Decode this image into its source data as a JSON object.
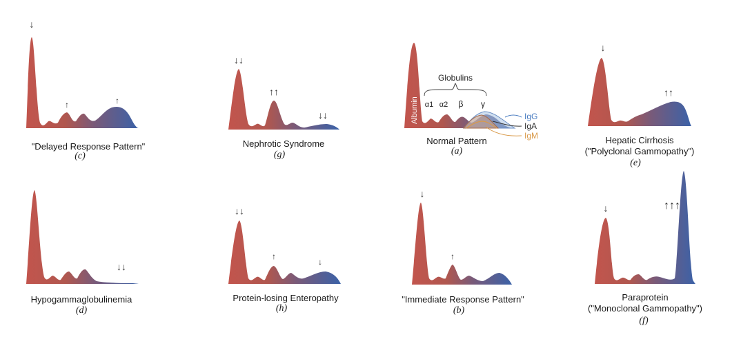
{
  "panels": [
    {
      "id": "c",
      "letter": "(c)",
      "caption_lines": [
        "\"Delayed Response Pattern\""
      ],
      "arrows": [
        "↓",
        "↑",
        "↑"
      ]
    },
    {
      "id": "g",
      "letter": "(g)",
      "caption_lines": [
        "Nephrotic Syndrome"
      ],
      "arrows": [
        "↓↓",
        "↑↑",
        "↓↓"
      ]
    },
    {
      "id": "a",
      "letter": "(a)",
      "caption_lines": [
        "Normal Pattern"
      ],
      "arrows": []
    },
    {
      "id": "e",
      "letter": "(e)",
      "caption_lines": [
        "Hepatic Cirrhosis",
        "(\"Polyclonal Gammopathy\")"
      ],
      "arrows": [
        "↓",
        "↑↑"
      ]
    },
    {
      "id": "d",
      "letter": "(d)",
      "caption_lines": [
        "Hypogammaglobulinemia"
      ],
      "arrows": [
        "↓↓"
      ]
    },
    {
      "id": "h",
      "letter": "(h)",
      "caption_lines": [
        "Protein-losing Enteropathy"
      ],
      "arrows": [
        "↓↓",
        "↑",
        "↓"
      ]
    },
    {
      "id": "b",
      "letter": "(b)",
      "caption_lines": [
        "\"Immediate Response Pattern\""
      ],
      "arrows": [
        "↓",
        "↑"
      ]
    },
    {
      "id": "f",
      "letter": "(f)",
      "caption_lines": [
        "Paraprotein",
        "(\"Monoclonal Gammopathy\")"
      ],
      "arrows": [
        "↓",
        "↑↑↑"
      ]
    }
  ],
  "normal_labels": {
    "albumin": "Albumin",
    "globulins": "Globulins",
    "alpha1": "α1",
    "alpha2": "α2",
    "beta": "β",
    "gamma": "γ",
    "igg": "IgG",
    "iga": "IgA",
    "igm": "IgM"
  },
  "colors": {
    "albumin_red": "#c2554d",
    "gamma_blue": "#3b62a8",
    "igg_blue": "#4a7cc0",
    "igm_orange": "#d99a4a",
    "arrow": "#333333"
  }
}
